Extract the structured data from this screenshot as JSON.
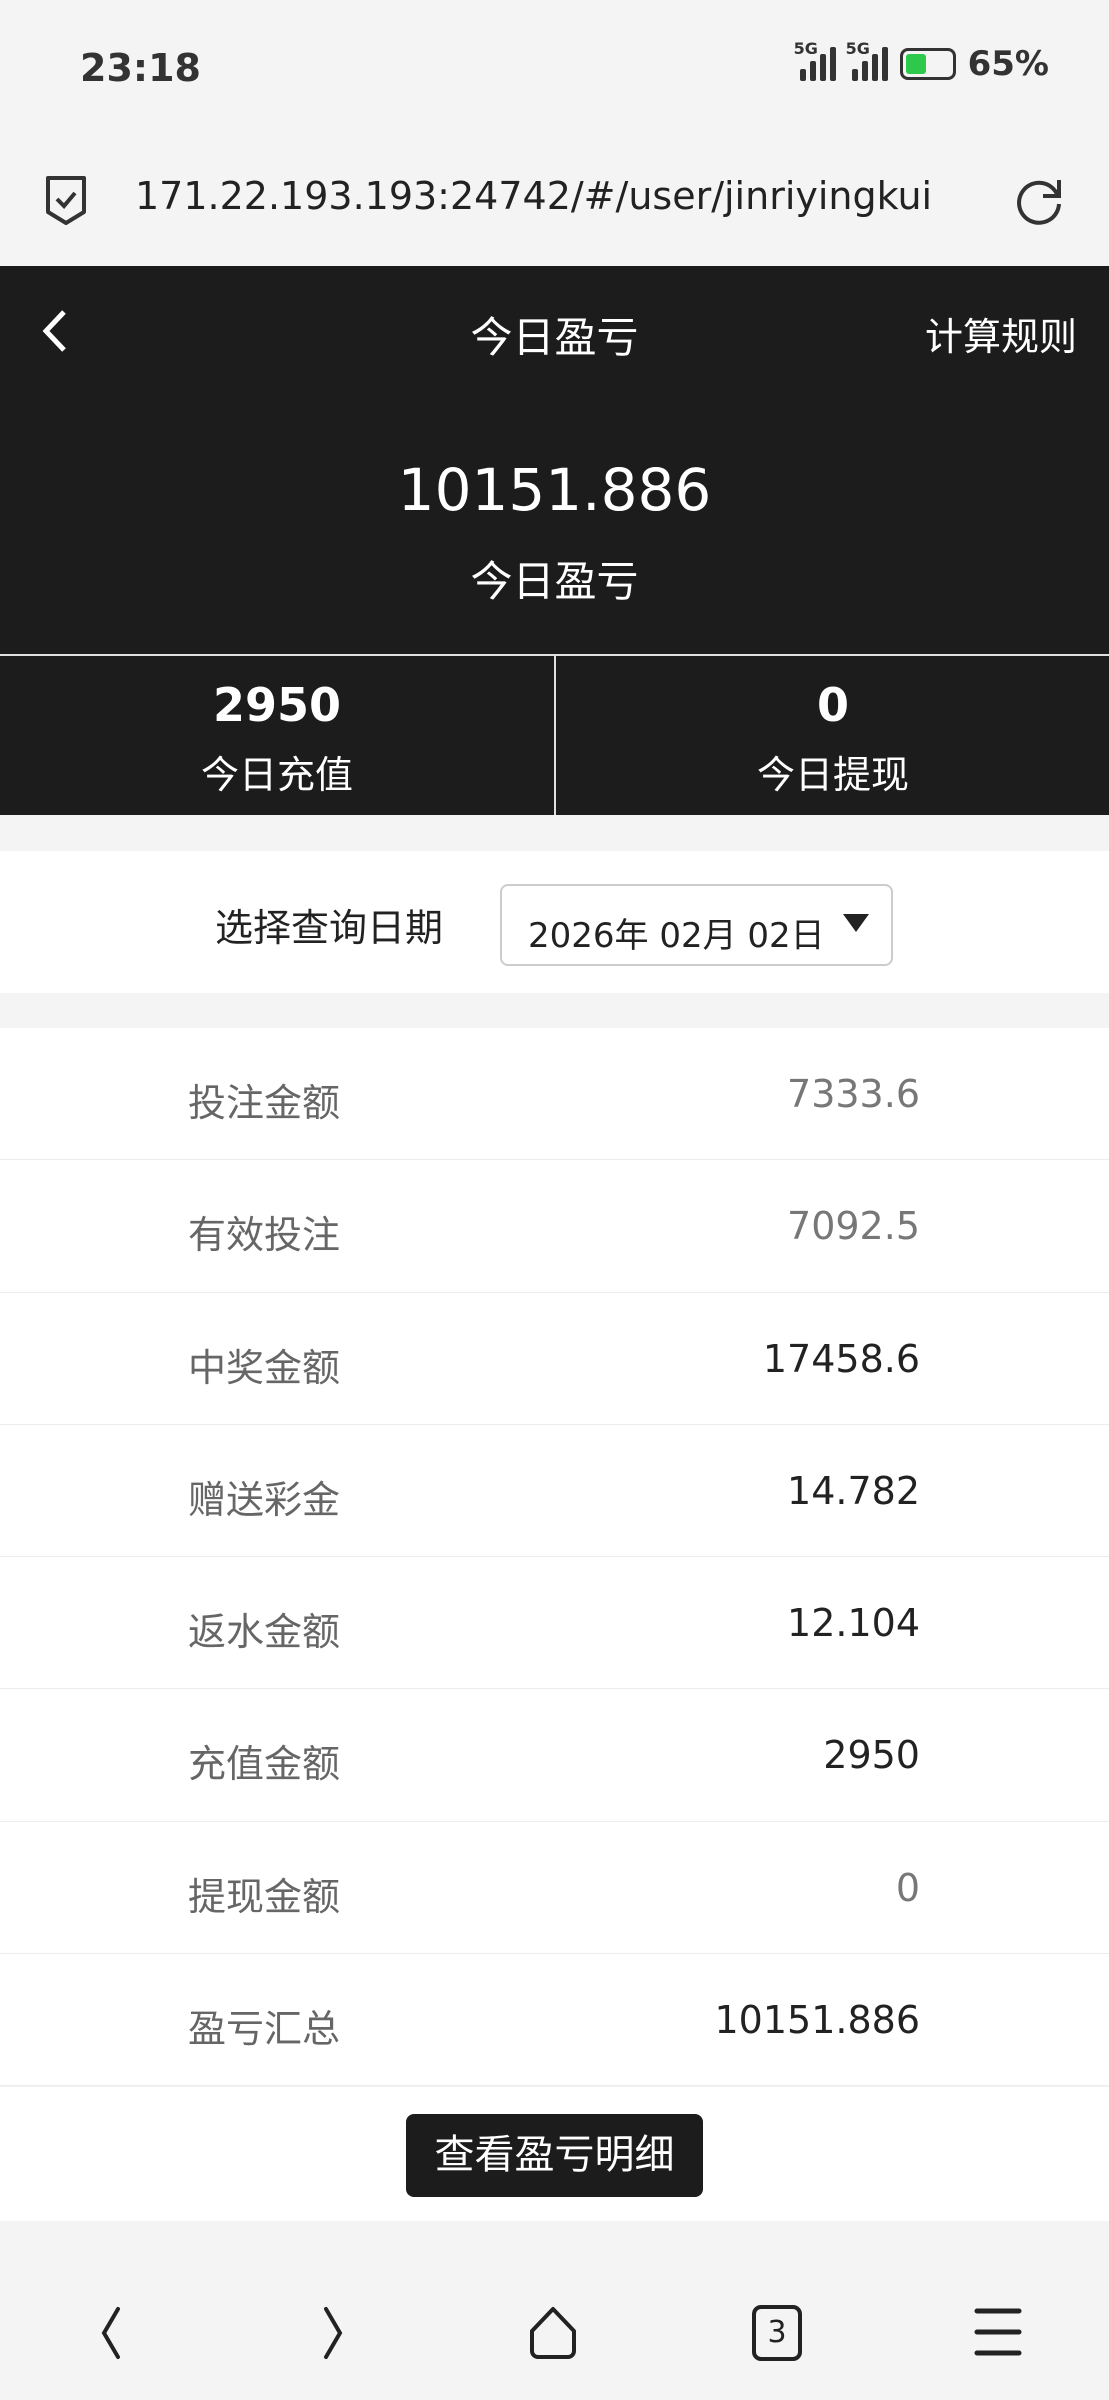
{
  "status_bar": {
    "time": "23:18",
    "network": "5G",
    "battery": "65%",
    "battery_color": "#2ec94a"
  },
  "browser": {
    "url": "171.22.193.193:24742/#/user/jinriyingkui",
    "tabs_count": "3"
  },
  "header": {
    "title": "今日盈亏",
    "rules_label": "计算规则",
    "profit_value": "10151.886",
    "profit_label": "今日盈亏",
    "stats": [
      {
        "value": "2950",
        "label": "今日充值"
      },
      {
        "value": "0",
        "label": "今日提现"
      }
    ]
  },
  "date_filter": {
    "label": "选择查询日期",
    "value": "2026年 02月 02日"
  },
  "rows": [
    {
      "label": "投注金额",
      "value": "7333.6"
    },
    {
      "label": "有效投注",
      "value": "7092.5"
    },
    {
      "label": "中奖金额",
      "value": "17458.6"
    },
    {
      "label": "赠送彩金",
      "value": "14.782"
    },
    {
      "label": "返水金额",
      "value": "12.104"
    },
    {
      "label": "充值金额",
      "value": "2950"
    },
    {
      "label": "提现金额",
      "value": "0"
    },
    {
      "label": "盈亏汇总",
      "value": "10151.886"
    }
  ],
  "detail_button": "查看盈亏明细"
}
